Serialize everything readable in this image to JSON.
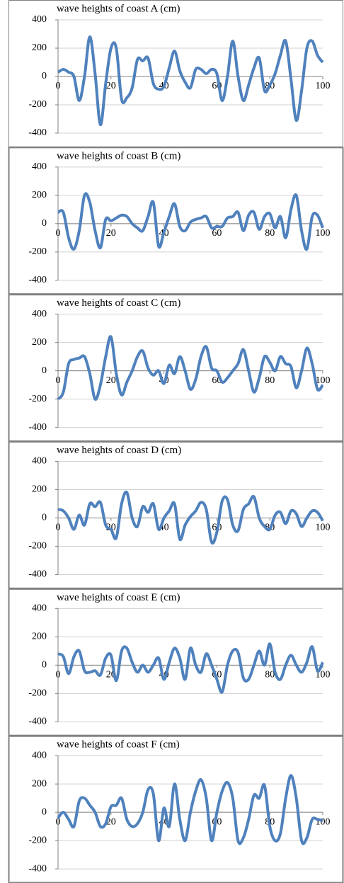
{
  "chart_data": [
    {
      "type": "line",
      "title": "wave heights of coast A (cm)",
      "color": "#4f81bd",
      "xlim": [
        0,
        100
      ],
      "ylim": [
        -400,
        400
      ],
      "xticks": [
        0,
        20,
        40,
        60,
        80,
        100
      ],
      "yticks": [
        -400,
        -200,
        0,
        200,
        400
      ],
      "grid": true,
      "x": [
        0,
        2,
        4,
        6,
        8,
        10,
        12,
        14,
        16,
        18,
        20,
        22,
        24,
        26,
        28,
        30,
        32,
        34,
        36,
        38,
        40,
        42,
        44,
        46,
        48,
        50,
        52,
        54,
        56,
        58,
        60,
        62,
        64,
        66,
        68,
        70,
        72,
        74,
        76,
        78,
        80,
        82,
        84,
        86,
        88,
        90,
        92,
        94,
        96,
        98,
        100
      ],
      "values": [
        30,
        50,
        30,
        0,
        -170,
        0,
        280,
        20,
        -340,
        -50,
        200,
        200,
        -160,
        -150,
        -80,
        120,
        110,
        130,
        -50,
        -90,
        -70,
        60,
        180,
        40,
        -40,
        -80,
        50,
        50,
        20,
        50,
        20,
        -170,
        0,
        250,
        0,
        -170,
        -60,
        60,
        130,
        -100,
        -60,
        20,
        150,
        250,
        -20,
        -310,
        -100,
        200,
        250,
        150,
        100
      ]
    },
    {
      "type": "line",
      "title": "wave heights of coast B (cm)",
      "color": "#4f81bd",
      "xlim": [
        0,
        100
      ],
      "ylim": [
        -400,
        400
      ],
      "xticks": [
        0,
        20,
        40,
        60,
        80,
        100
      ],
      "yticks": [
        -400,
        -200,
        0,
        200,
        400
      ],
      "grid": true,
      "x": [
        0,
        2,
        4,
        6,
        8,
        10,
        12,
        14,
        16,
        18,
        20,
        22,
        24,
        26,
        28,
        30,
        32,
        34,
        36,
        38,
        40,
        42,
        44,
        46,
        48,
        50,
        52,
        54,
        56,
        58,
        60,
        62,
        64,
        66,
        68,
        70,
        72,
        74,
        76,
        78,
        80,
        82,
        84,
        86,
        88,
        90,
        92,
        94,
        96,
        98,
        100
      ],
      "values": [
        80,
        80,
        -100,
        -180,
        -50,
        200,
        150,
        -50,
        -170,
        30,
        20,
        40,
        60,
        50,
        0,
        -30,
        -50,
        50,
        150,
        -160,
        -60,
        50,
        140,
        -20,
        -50,
        10,
        30,
        40,
        50,
        -30,
        -20,
        -20,
        40,
        50,
        80,
        -50,
        60,
        80,
        -40,
        50,
        70,
        -30,
        50,
        -100,
        100,
        200,
        -50,
        -180,
        50,
        60,
        -30
      ]
    },
    {
      "type": "line",
      "title": "wave heights of coast C (cm)",
      "color": "#4f81bd",
      "xlim": [
        0,
        100
      ],
      "ylim": [
        -400,
        400
      ],
      "xticks": [
        0,
        20,
        40,
        60,
        80,
        100
      ],
      "yticks": [
        -400,
        -200,
        0,
        200,
        400
      ],
      "grid": true,
      "x": [
        0,
        2,
        4,
        6,
        8,
        10,
        12,
        14,
        16,
        18,
        20,
        22,
        24,
        26,
        28,
        30,
        32,
        34,
        36,
        38,
        40,
        42,
        44,
        46,
        48,
        50,
        52,
        54,
        56,
        58,
        60,
        62,
        64,
        66,
        68,
        70,
        72,
        74,
        76,
        78,
        80,
        82,
        84,
        86,
        88,
        90,
        92,
        94,
        96,
        98,
        100
      ],
      "values": [
        -200,
        -150,
        50,
        80,
        90,
        100,
        -20,
        -200,
        -100,
        100,
        240,
        -20,
        -170,
        -80,
        0,
        100,
        140,
        20,
        -30,
        0,
        -90,
        40,
        -20,
        100,
        0,
        -130,
        -60,
        100,
        170,
        20,
        0,
        -80,
        -50,
        0,
        50,
        150,
        0,
        -150,
        -50,
        100,
        60,
        0,
        100,
        50,
        30,
        -120,
        0,
        160,
        50,
        -130,
        -100
      ]
    },
    {
      "type": "line",
      "title": "wave heights of coast D (cm)",
      "color": "#4f81bd",
      "xlim": [
        0,
        100
      ],
      "ylim": [
        -400,
        400
      ],
      "xticks": [
        0,
        20,
        40,
        60,
        80,
        100
      ],
      "yticks": [
        -400,
        -200,
        0,
        200,
        400
      ],
      "grid": true,
      "x": [
        0,
        2,
        4,
        6,
        8,
        10,
        12,
        14,
        16,
        18,
        20,
        22,
        24,
        26,
        28,
        30,
        32,
        34,
        36,
        38,
        40,
        42,
        44,
        46,
        48,
        50,
        52,
        54,
        56,
        58,
        60,
        62,
        64,
        66,
        68,
        70,
        72,
        74,
        76,
        78,
        80,
        82,
        84,
        86,
        88,
        90,
        92,
        94,
        96,
        98,
        100
      ],
      "values": [
        60,
        50,
        0,
        -80,
        20,
        -50,
        100,
        80,
        110,
        -50,
        -80,
        -140,
        100,
        180,
        0,
        -60,
        80,
        40,
        100,
        -80,
        0,
        50,
        100,
        -150,
        -50,
        10,
        50,
        110,
        60,
        -170,
        -100,
        120,
        130,
        -50,
        -90,
        60,
        100,
        150,
        0,
        -60,
        -80,
        20,
        40,
        -40,
        50,
        30,
        -60,
        0,
        50,
        40,
        -20
      ]
    },
    {
      "type": "line",
      "title": "wave heights of coast E (cm)",
      "color": "#4f81bd",
      "xlim": [
        0,
        100
      ],
      "ylim": [
        -400,
        400
      ],
      "xticks": [
        0,
        20,
        40,
        60,
        80,
        100
      ],
      "yticks": [
        -400,
        -200,
        0,
        200,
        400
      ],
      "grid": true,
      "x": [
        0,
        2,
        4,
        6,
        8,
        10,
        12,
        14,
        16,
        18,
        20,
        22,
        24,
        26,
        28,
        30,
        32,
        34,
        36,
        38,
        40,
        42,
        44,
        46,
        48,
        50,
        52,
        54,
        56,
        58,
        60,
        62,
        64,
        66,
        68,
        70,
        72,
        74,
        76,
        78,
        80,
        82,
        84,
        86,
        88,
        90,
        92,
        94,
        96,
        98,
        100
      ],
      "values": [
        80,
        60,
        -60,
        60,
        100,
        -40,
        -50,
        -40,
        -70,
        50,
        70,
        -110,
        100,
        120,
        20,
        -50,
        0,
        -50,
        0,
        50,
        -100,
        20,
        120,
        50,
        -100,
        120,
        0,
        -50,
        80,
        0,
        -100,
        -190,
        0,
        100,
        90,
        -90,
        -100,
        0,
        100,
        0,
        150,
        -50,
        -100,
        0,
        70,
        0,
        -50,
        20,
        130,
        -40,
        20
      ]
    },
    {
      "type": "line",
      "title": "wave heights of coast F (cm)",
      "color": "#4f81bd",
      "xlim": [
        0,
        100
      ],
      "ylim": [
        -400,
        400
      ],
      "xticks": [
        0,
        20,
        40,
        60,
        80,
        100
      ],
      "yticks": [
        -400,
        -200,
        0,
        200,
        400
      ],
      "grid": true,
      "x": [
        0,
        2,
        4,
        6,
        8,
        10,
        12,
        14,
        16,
        18,
        20,
        22,
        24,
        26,
        28,
        30,
        32,
        34,
        36,
        38,
        40,
        42,
        44,
        46,
        48,
        50,
        52,
        54,
        56,
        58,
        60,
        62,
        64,
        66,
        68,
        70,
        72,
        74,
        76,
        78,
        80,
        82,
        84,
        86,
        88,
        90,
        92,
        94,
        96,
        98,
        100
      ],
      "values": [
        -40,
        0,
        -50,
        -100,
        80,
        100,
        50,
        0,
        -100,
        -80,
        40,
        50,
        100,
        -50,
        -100,
        -80,
        0,
        160,
        130,
        -200,
        30,
        -100,
        200,
        -50,
        -200,
        0,
        150,
        230,
        100,
        -200,
        0,
        150,
        210,
        100,
        -200,
        -180,
        -50,
        120,
        100,
        190,
        -100,
        -200,
        -150,
        100,
        260,
        100,
        -200,
        -180,
        -50,
        -50,
        -60
      ]
    }
  ]
}
